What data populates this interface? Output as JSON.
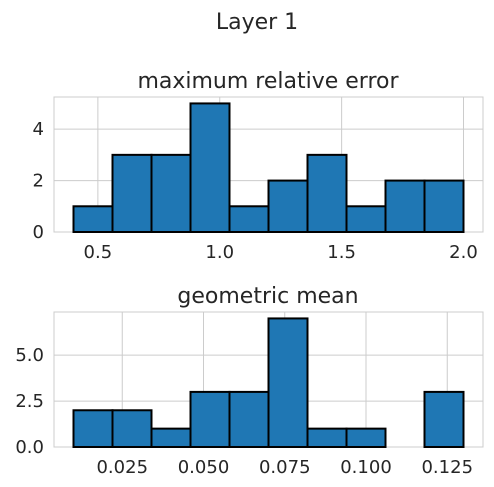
{
  "figure": {
    "suptitle": "Layer 1"
  },
  "chart_data": [
    {
      "type": "bar",
      "title": "maximum relative error",
      "xlabel": "",
      "ylabel": "",
      "grid": true,
      "bin_edges": [
        0.4,
        0.56,
        0.72,
        0.88,
        1.04,
        1.2,
        1.36,
        1.52,
        1.68,
        1.84,
        2.0
      ],
      "values": [
        1,
        3,
        3,
        5,
        1,
        2,
        3,
        1,
        2,
        2
      ],
      "xlim": [
        0.32,
        2.08
      ],
      "ylim": [
        0,
        5.25
      ],
      "xticks": [
        0.5,
        1.0,
        1.5,
        2.0
      ],
      "xtick_labels": [
        "0.5",
        "1.0",
        "1.5",
        "2.0"
      ],
      "yticks": [
        0,
        2,
        4
      ],
      "ytick_labels": [
        "0",
        "2",
        "4"
      ],
      "color": "#1f77b4"
    },
    {
      "type": "bar",
      "title": "geometric mean",
      "xlabel": "",
      "ylabel": "",
      "grid": true,
      "bin_edges": [
        0.01,
        0.022,
        0.034,
        0.046,
        0.058,
        0.07,
        0.082,
        0.094,
        0.106,
        0.118,
        0.13
      ],
      "values": [
        2,
        2,
        1,
        3,
        3,
        7,
        1,
        1,
        0,
        3
      ],
      "xlim": [
        0.004,
        0.136
      ],
      "ylim": [
        0,
        7.35
      ],
      "xticks": [
        0.025,
        0.05,
        0.075,
        0.1,
        0.125
      ],
      "xtick_labels": [
        "0.025",
        "0.050",
        "0.075",
        "0.100",
        "0.125"
      ],
      "yticks": [
        0,
        2.5,
        5.0
      ],
      "ytick_labels": [
        "0.0",
        "2.5",
        "5.0"
      ],
      "color": "#1f77b4"
    }
  ]
}
